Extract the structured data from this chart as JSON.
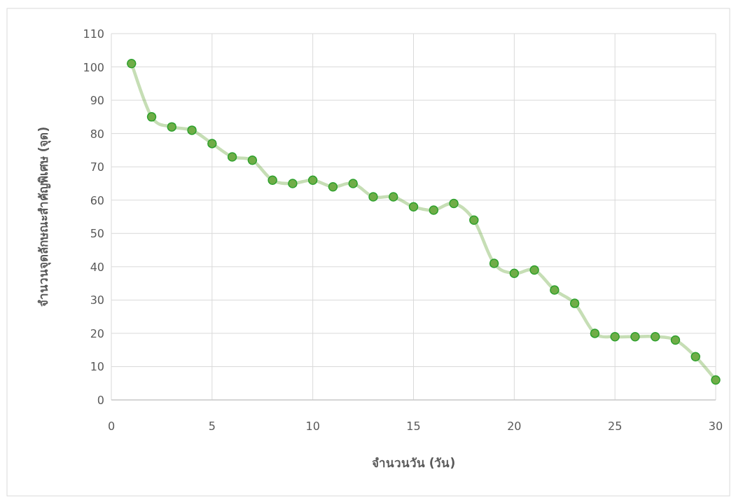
{
  "chart_data": {
    "type": "line",
    "xlabel": "จำนวนวัน (วัน)",
    "ylabel": "จำนวนจุดลักษณะสำคัญพิเศษ (จุด)",
    "x": [
      1,
      2,
      3,
      4,
      5,
      6,
      7,
      8,
      9,
      10,
      11,
      12,
      13,
      14,
      15,
      16,
      17,
      18,
      19,
      20,
      21,
      22,
      23,
      24,
      25,
      26,
      27,
      28,
      29,
      30
    ],
    "series": [
      {
        "color": "#70ad47",
        "values": [
          101,
          85,
          82,
          81,
          77,
          73,
          72,
          66,
          65,
          66,
          64,
          65,
          61,
          61,
          58,
          57,
          59,
          54,
          41,
          38,
          39,
          33,
          29,
          20,
          19,
          19,
          19,
          18,
          13,
          6
        ]
      }
    ],
    "xlim": [
      0,
      30
    ],
    "xticks": [
      0,
      5,
      10,
      15,
      20,
      25,
      30
    ],
    "ylim": [
      0,
      110
    ],
    "yticks": [
      0,
      10,
      20,
      30,
      40,
      50,
      60,
      70,
      80,
      90,
      100,
      110
    ],
    "grid": true,
    "marker": "circle"
  }
}
